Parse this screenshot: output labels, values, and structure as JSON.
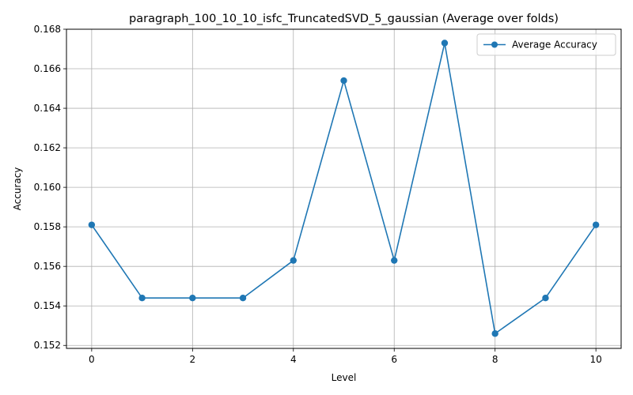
{
  "chart_data": {
    "type": "line",
    "title": "paragraph_100_10_10_isfc_TruncatedSVD_5_gaussian (Average over folds)",
    "xlabel": "Level",
    "ylabel": "Accuracy",
    "xlim": [
      -0.5,
      10.5
    ],
    "ylim": [
      0.15185,
      0.168
    ],
    "xticks": [
      0,
      2,
      4,
      6,
      8,
      10
    ],
    "xtick_labels": [
      "0",
      "2",
      "4",
      "6",
      "8",
      "10"
    ],
    "yticks": [
      0.152,
      0.154,
      0.156,
      0.158,
      0.16,
      0.162,
      0.164,
      0.166,
      0.168
    ],
    "ytick_labels": [
      "0.152",
      "0.154",
      "0.156",
      "0.158",
      "0.160",
      "0.162",
      "0.164",
      "0.166",
      "0.168"
    ],
    "grid": true,
    "legend_position": "top-right",
    "series": [
      {
        "name": "Average Accuracy",
        "color": "#1f77b4",
        "marker": "circle",
        "x": [
          0,
          1,
          2,
          3,
          4,
          5,
          6,
          7,
          8,
          9,
          10
        ],
        "values": [
          0.1581,
          0.1544,
          0.1544,
          0.1544,
          0.1563,
          0.1654,
          0.1563,
          0.1673,
          0.1526,
          0.1544,
          0.1581
        ]
      }
    ]
  }
}
